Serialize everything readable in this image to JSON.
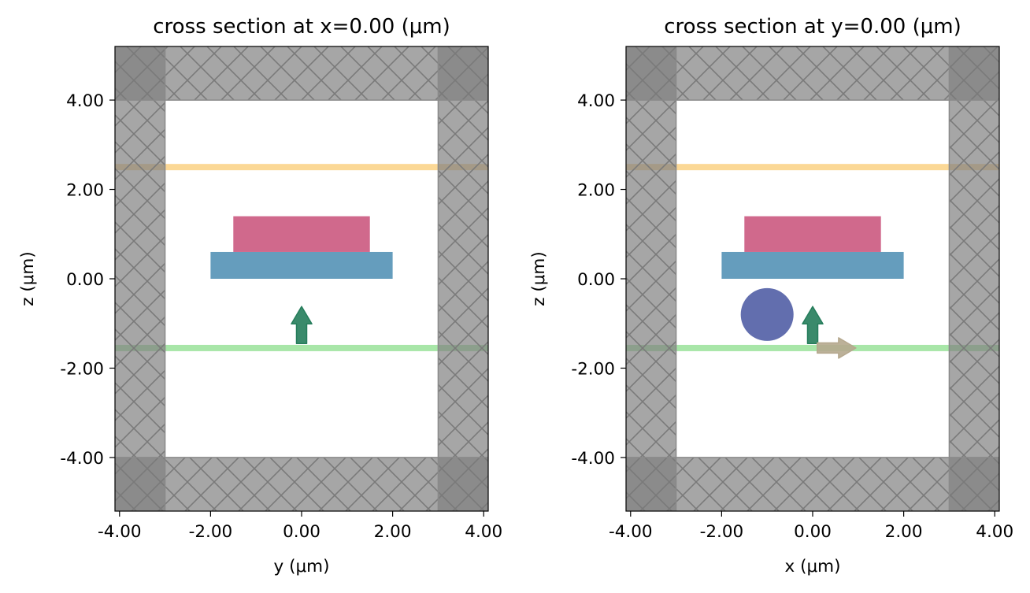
{
  "chart_data": [
    {
      "type": "cross-section",
      "title": "cross section at x=0.00 (μm)",
      "xlabel": "y (μm)",
      "ylabel": "z (μm)",
      "xlim": [
        -4.1,
        4.1
      ],
      "ylim": [
        -5.2,
        5.2
      ],
      "xticks": [
        -4,
        -2,
        0,
        2,
        4
      ],
      "xtick_labels": [
        "-4.00",
        "-2.00",
        "0.00",
        "2.00",
        "4.00"
      ],
      "yticks": [
        -4,
        -2,
        0,
        2,
        4
      ],
      "ytick_labels": [
        "-4.00",
        "-2.00",
        "0.00",
        "2.00",
        "4.00"
      ],
      "pml_inner_bounds": {
        "h": [
          -3,
          3
        ],
        "v": [
          -4,
          4
        ]
      },
      "structures": [
        {
          "name": "lower slab",
          "shape": "rect",
          "h": [
            -2,
            2
          ],
          "v": [
            0,
            0.6
          ],
          "color": "#659dbd"
        },
        {
          "name": "upper slab",
          "shape": "rect",
          "h": [
            -1.5,
            1.5
          ],
          "v": [
            0.6,
            1.4
          ],
          "color": "#d0698c"
        }
      ],
      "planes": [
        {
          "name": "monitor plane",
          "v": 2.5,
          "color": "#fbd896"
        },
        {
          "name": "source plane",
          "v": -1.55,
          "color": "#a8e6a8"
        }
      ],
      "arrows": [
        {
          "name": "source direction",
          "from": [
            0,
            -1.45
          ],
          "to": [
            0,
            -0.62
          ],
          "color": "#257d5b"
        }
      ]
    },
    {
      "type": "cross-section",
      "title": "cross section at y=0.00 (μm)",
      "xlabel": "x (μm)",
      "ylabel": "z (μm)",
      "xlim": [
        -4.1,
        4.1
      ],
      "ylim": [
        -5.2,
        5.2
      ],
      "xticks": [
        -4,
        -2,
        0,
        2,
        4
      ],
      "xtick_labels": [
        "-4.00",
        "-2.00",
        "0.00",
        "2.00",
        "4.00"
      ],
      "yticks": [
        -4,
        -2,
        0,
        2,
        4
      ],
      "ytick_labels": [
        "-4.00",
        "-2.00",
        "0.00",
        "2.00",
        "4.00"
      ],
      "pml_inner_bounds": {
        "h": [
          -3,
          3
        ],
        "v": [
          -4,
          4
        ]
      },
      "structures": [
        {
          "name": "lower slab",
          "shape": "rect",
          "h": [
            -2,
            2
          ],
          "v": [
            0,
            0.6
          ],
          "color": "#659dbd"
        },
        {
          "name": "upper slab",
          "shape": "rect",
          "h": [
            -1.5,
            1.5
          ],
          "v": [
            0.6,
            1.4
          ],
          "color": "#d0698c"
        },
        {
          "name": "sphere",
          "shape": "circle",
          "center": [
            -1,
            -0.8
          ],
          "radius": 0.58,
          "color": "#626eae"
        }
      ],
      "planes": [
        {
          "name": "monitor plane",
          "v": 2.5,
          "color": "#fbd896"
        },
        {
          "name": "source plane",
          "v": -1.55,
          "color": "#a8e6a8"
        }
      ],
      "arrows": [
        {
          "name": "source direction",
          "from": [
            0,
            -1.45
          ],
          "to": [
            0,
            -0.62
          ],
          "color": "#257d5b"
        },
        {
          "name": "polarization",
          "from": [
            0.1,
            -1.55
          ],
          "to": [
            0.95,
            -1.55
          ],
          "color": "#b5a88e"
        }
      ]
    }
  ]
}
